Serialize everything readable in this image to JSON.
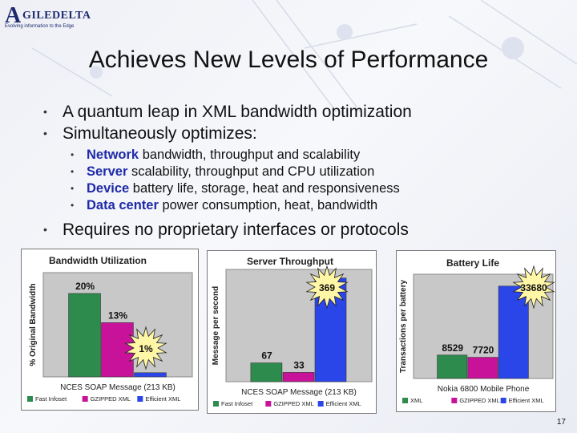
{
  "logo": {
    "mark": "A",
    "name": "GILEDELTA",
    "tagline": "Evolving information to the Edge"
  },
  "slide": {
    "title": "Achieves New Levels of Performance",
    "bullets": [
      "A quantum leap in XML bandwidth optimization",
      "Simultaneously optimizes:"
    ],
    "sub_bullets": [
      {
        "keyword": "Network",
        "rest": " bandwidth, throughput and scalability"
      },
      {
        "keyword": "Server",
        "rest": " scalability, throughput and CPU utilization"
      },
      {
        "keyword": "Device",
        "rest": " battery life, storage, heat and responsiveness"
      },
      {
        "keyword": "Data center",
        "rest": " power consumption, heat, bandwidth"
      }
    ],
    "last_bullet": "Requires no proprietary interfaces or protocols",
    "page_number": "17"
  },
  "colors": {
    "green": "#2e8b4e",
    "magenta": "#c8129a",
    "blue": "#2a46e8",
    "plot_bg": "#c8c8c8",
    "keyword": "#1e2aa8"
  },
  "chart_data": [
    {
      "type": "bar",
      "title": "Bandwidth Utilization",
      "ylabel": "% Original Bandwidth",
      "xlabel": "NCES SOAP Message (213 KB)",
      "categories": [
        "NCES SOAP Message (213 KB)"
      ],
      "series": [
        {
          "name": "Fast Infoset",
          "values": [
            20
          ],
          "label": "20%"
        },
        {
          "name": "GZIPPED XML",
          "values": [
            13
          ],
          "label": "13%"
        },
        {
          "name": "Efficient XML",
          "values": [
            1
          ],
          "label": "1%"
        }
      ],
      "ylim": [
        0,
        25
      ],
      "legend": "bottom"
    },
    {
      "type": "bar",
      "title": "Server Throughput",
      "ylabel": "Message per second",
      "xlabel": "NCES SOAP Message (213 KB)",
      "categories": [
        "NCES SOAP Message (213 KB)"
      ],
      "series": [
        {
          "name": "Fast Infoset",
          "values": [
            67
          ],
          "label": "67"
        },
        {
          "name": "GZIPPED XML",
          "values": [
            33
          ],
          "label": "33"
        },
        {
          "name": "Efficient XML",
          "values": [
            369
          ],
          "label": "369"
        }
      ],
      "ylim": [
        0,
        400
      ],
      "legend": "bottom"
    },
    {
      "type": "bar",
      "title": "Battery Life",
      "ylabel": "Transactions per battery",
      "xlabel": "Nokia 6800 Mobile Phone",
      "categories": [
        "Nokia 6800 Mobile Phone"
      ],
      "series": [
        {
          "name": "XML",
          "values": [
            8529
          ],
          "label": "8529"
        },
        {
          "name": "GZIPPED XML",
          "values": [
            7720
          ],
          "label": "7720"
        },
        {
          "name": "Efficient XML",
          "values": [
            33680
          ],
          "label": "33680"
        }
      ],
      "ylim": [
        0,
        38000
      ],
      "legend": "bottom"
    }
  ]
}
